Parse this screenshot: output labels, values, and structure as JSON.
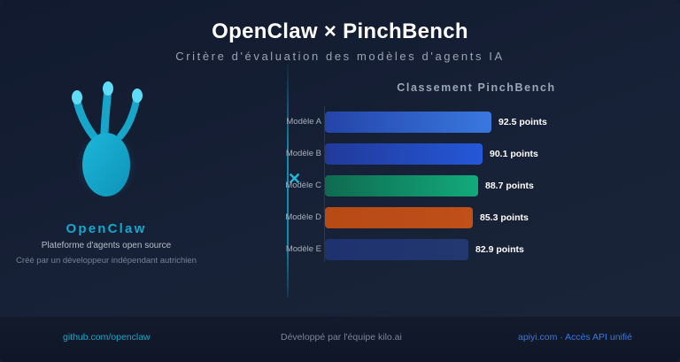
{
  "header": {
    "title": "OpenClaw × PinchBench",
    "subtitle": "Critère d'évaluation des modèles d'agents IA"
  },
  "brand": {
    "logo_icon": "claw-icon",
    "name": "OpenClaw",
    "description": "Plateforme d'agents open source",
    "credit": "Créé par un développeur indépendant autrichien",
    "color": "#13a9cf"
  },
  "divider": {
    "marker": "✕",
    "color": "#0e8fb0"
  },
  "chart": {
    "title": "Classement PinchBench",
    "rows": [
      {
        "label": "Modèle A",
        "value_label": "92.5 points",
        "width": 188,
        "gradient": "linear-gradient(90deg,#2444a8,#3978e0)"
      },
      {
        "label": "Modèle B",
        "value_label": "90.1 points",
        "width": 178,
        "gradient": "linear-gradient(90deg,#22399a,#2458d8)"
      },
      {
        "label": "Modèle C",
        "value_label": "88.7 points",
        "width": 173,
        "gradient": "linear-gradient(90deg,#0f6a50,#12aa7a)"
      },
      {
        "label": "Modèle D",
        "value_label": "85.3 points",
        "width": 167,
        "gradient": "linear-gradient(90deg,#b74a16,#c04f18)"
      },
      {
        "label": "Modèle E",
        "value_label": "82.9 points",
        "width": 162,
        "gradient": "linear-gradient(90deg,#1f3270,#22386f)"
      }
    ]
  },
  "chart_data": {
    "type": "bar",
    "title": "Classement PinchBench",
    "orientation": "horizontal",
    "categories": [
      "Modèle A",
      "Modèle B",
      "Modèle C",
      "Modèle D",
      "Modèle E"
    ],
    "values": [
      92.5,
      90.1,
      88.7,
      85.3,
      82.9
    ],
    "value_unit": "points",
    "colors": [
      "#3070dc",
      "#2458d8",
      "#12a074",
      "#bb4c17",
      "#20346f"
    ],
    "xlabel": "",
    "ylabel": "",
    "grid": false,
    "legend": false
  },
  "footer": {
    "left": "github.com/openclaw",
    "center": "Développé par l'équipe kilo.ai",
    "right": "apiyi.com · Accès API unifié"
  }
}
